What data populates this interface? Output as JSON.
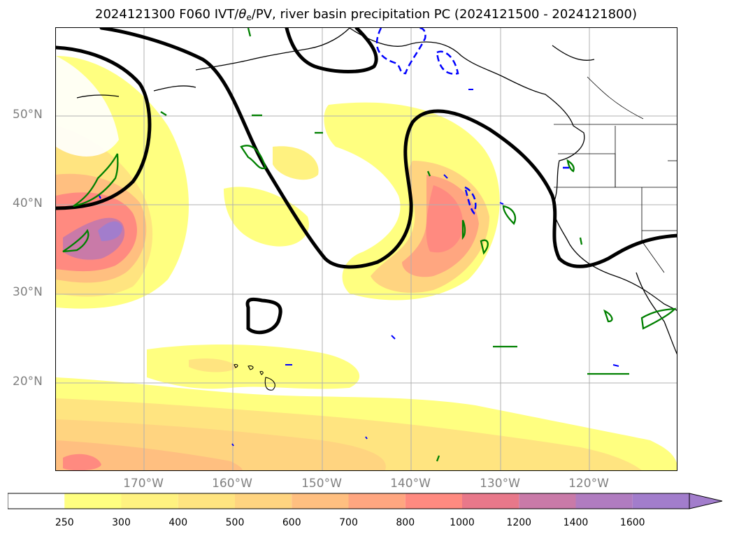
{
  "title": {
    "main_prefix": "2024121300 F060 IVT/",
    "theta": "θ",
    "theta_sub": "e",
    "main_suffix": "/PV, river basin precipitation PC (2024121500 - 2024121800)"
  },
  "lat_labels": [
    "50°N",
    "40°N",
    "30°N",
    "20°N"
  ],
  "lon_labels": [
    "170°W",
    "160°W",
    "150°W",
    "140°W",
    "130°W",
    "120°W"
  ],
  "colorbar": {
    "levels": [
      "250",
      "300",
      "400",
      "500",
      "600",
      "700",
      "800",
      "1000",
      "1200",
      "1400",
      "1600"
    ],
    "colors": [
      "#ffffff",
      "#ffff80",
      "#fff280",
      "#ffe480",
      "#ffd480",
      "#ffbf80",
      "#ffa680",
      "#ff8a80",
      "#e8788a",
      "#c97aa8",
      "#b07cc0",
      "#a27dcc"
    ]
  }
}
